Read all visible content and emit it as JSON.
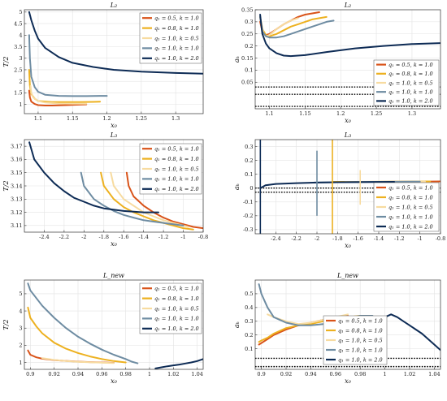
{
  "colors": {
    "s1": "#d95319",
    "s2": "#edb120",
    "s3": "#f7dba0",
    "s4": "#6e8ca2",
    "s5": "#0d2b55",
    "grid": "#e3e3e3",
    "axis": "#333333"
  },
  "legend_labels": [
    "q₁ = 0.5, k = 1.0",
    "q₁ = 0.8, k = 1.0",
    "q₁ = 1.0, k = 0.5",
    "q₁ = 1.0, k = 1.0",
    "q₁ = 1.0, k = 2.0"
  ],
  "chart_data": [
    {
      "type": "line",
      "title": "L₂",
      "xlabel": "x₀",
      "ylabel": "T/2",
      "xlim": [
        1.08,
        1.34
      ],
      "ylim": [
        0.6,
        5.1
      ],
      "xticks": [
        1.1,
        1.15,
        1.2,
        1.25,
        1.3
      ],
      "xtick_labels": [
        "1.1",
        "1.15",
        "1.2",
        "1.25",
        "1.3"
      ],
      "yticks": [
        1,
        1.5,
        2,
        2.5,
        3,
        3.5,
        4,
        4.5,
        5
      ],
      "ytick_labels": [
        "1",
        "1.5",
        "2",
        "2.5",
        "3",
        "3.5",
        "4",
        "4.5",
        "5"
      ],
      "grid": true,
      "legend_loc": "top-right",
      "series": [
        {
          "x": [
            1.087,
            1.088,
            1.09,
            1.095,
            1.1,
            1.11,
            1.12,
            1.14,
            1.16,
            1.17
          ],
          "y": [
            1.6,
            1.3,
            1.12,
            1.02,
            0.97,
            0.95,
            0.95,
            0.97,
            0.99,
            1.0
          ]
        },
        {
          "x": [
            1.087,
            1.088,
            1.09,
            1.095,
            1.1,
            1.12,
            1.14,
            1.16,
            1.18,
            1.19
          ],
          "y": [
            2.5,
            1.8,
            1.45,
            1.25,
            1.15,
            1.1,
            1.1,
            1.1,
            1.11,
            1.12
          ]
        },
        {
          "x": [
            1.089,
            1.09,
            1.093,
            1.1,
            1.11,
            1.13,
            1.15,
            1.17
          ],
          "y": [
            1.8,
            1.5,
            1.3,
            1.15,
            1.08,
            1.04,
            1.03,
            1.03
          ]
        },
        {
          "x": [
            1.087,
            1.088,
            1.09,
            1.095,
            1.1,
            1.11,
            1.13,
            1.15,
            1.17,
            1.19,
            1.2
          ],
          "y": [
            4.0,
            3.0,
            2.2,
            1.75,
            1.55,
            1.42,
            1.37,
            1.36,
            1.36,
            1.37,
            1.37
          ]
        },
        {
          "x": [
            1.087,
            1.09,
            1.095,
            1.1,
            1.11,
            1.13,
            1.15,
            1.18,
            1.21,
            1.25,
            1.3,
            1.34
          ],
          "y": [
            5.0,
            4.65,
            4.2,
            3.85,
            3.45,
            3.05,
            2.8,
            2.62,
            2.5,
            2.42,
            2.36,
            2.33
          ]
        }
      ]
    },
    {
      "type": "line",
      "title": "L₂",
      "xlabel": "x₀",
      "ylabel": "aₕ",
      "xlim": [
        1.08,
        1.34
      ],
      "ylim": [
        -0.06,
        0.35
      ],
      "xticks": [
        1.1,
        1.15,
        1.2,
        1.25,
        1.3
      ],
      "xtick_labels": [
        "1.1",
        "1.15",
        "1.2",
        "1.25",
        "1.3"
      ],
      "yticks": [
        0.05,
        0.1,
        0.15,
        0.2,
        0.25,
        0.3,
        0.35
      ],
      "ytick_labels": [
        "0.05",
        "0.1",
        "0.15",
        "0.2",
        "0.25",
        "0.3",
        "0.35"
      ],
      "hlines": [
        0.03,
        0.0,
        -0.05
      ],
      "grid": true,
      "legend_loc": "bottom-right",
      "series": [
        {
          "x": [
            1.087,
            1.09,
            1.095,
            1.1,
            1.11,
            1.12,
            1.13,
            1.14,
            1.15,
            1.16,
            1.17
          ],
          "y": [
            0.3,
            0.26,
            0.245,
            0.25,
            0.27,
            0.29,
            0.305,
            0.32,
            0.33,
            0.335,
            0.34
          ]
        },
        {
          "x": [
            1.087,
            1.09,
            1.095,
            1.1,
            1.11,
            1.12,
            1.13,
            1.14,
            1.15,
            1.16,
            1.17,
            1.18
          ],
          "y": [
            0.32,
            0.27,
            0.245,
            0.24,
            0.25,
            0.265,
            0.28,
            0.29,
            0.3,
            0.31,
            0.315,
            0.32
          ]
        },
        {
          "x": [
            1.089,
            1.092,
            1.095,
            1.1,
            1.11,
            1.12,
            1.13,
            1.14
          ],
          "y": [
            0.29,
            0.25,
            0.24,
            0.245,
            0.27,
            0.29,
            0.305,
            0.315
          ]
        },
        {
          "x": [
            1.087,
            1.09,
            1.095,
            1.1,
            1.11,
            1.12,
            1.13,
            1.14,
            1.15,
            1.16,
            1.17,
            1.18,
            1.19
          ],
          "y": [
            0.32,
            0.26,
            0.24,
            0.235,
            0.235,
            0.24,
            0.25,
            0.26,
            0.27,
            0.28,
            0.29,
            0.3,
            0.305
          ]
        },
        {
          "x": [
            1.087,
            1.088,
            1.09,
            1.095,
            1.1,
            1.11,
            1.12,
            1.13,
            1.15,
            1.18,
            1.22,
            1.26,
            1.3,
            1.34
          ],
          "y": [
            0.33,
            0.3,
            0.25,
            0.21,
            0.19,
            0.17,
            0.16,
            0.158,
            0.162,
            0.175,
            0.19,
            0.2,
            0.208,
            0.212
          ]
        }
      ]
    },
    {
      "type": "line",
      "title": "L₃",
      "xlabel": "x₀",
      "ylabel": "T/2",
      "xlim": [
        -2.6,
        -0.8
      ],
      "ylim": [
        3.105,
        3.175
      ],
      "xticks": [
        -2.4,
        -2.2,
        -2,
        -1.8,
        -1.6,
        -1.4,
        -1.2,
        -1,
        -0.8
      ],
      "xtick_labels": [
        "-2.4",
        "-2.2",
        "-2",
        "-1.8",
        "-1.6",
        "-1.4",
        "-1.2",
        "-1",
        "-0.8"
      ],
      "yticks": [
        3.11,
        3.12,
        3.13,
        3.14,
        3.15,
        3.16,
        3.17
      ],
      "ytick_labels": [
        "3.11",
        "3.12",
        "3.13",
        "3.14",
        "3.15",
        "3.16",
        "3.17"
      ],
      "grid": true,
      "legend_loc": "top-right",
      "series": [
        {
          "x": [
            -1.57,
            -1.55,
            -1.5,
            -1.4,
            -1.3,
            -1.2,
            -1.1,
            -1.0,
            -0.9,
            -0.8
          ],
          "y": [
            3.15,
            3.14,
            3.132,
            3.125,
            3.12,
            3.116,
            3.113,
            3.111,
            3.109,
            3.108
          ]
        },
        {
          "x": [
            -1.83,
            -1.8,
            -1.7,
            -1.6,
            -1.5,
            -1.4,
            -1.3,
            -1.2,
            -1.1,
            -1.0,
            -0.9
          ],
          "y": [
            3.15,
            3.14,
            3.13,
            3.124,
            3.12,
            3.117,
            3.114,
            3.112,
            3.11,
            3.108,
            3.107
          ]
        },
        {
          "x": [
            -1.73,
            -1.7,
            -1.6,
            -1.5,
            -1.4,
            -1.3,
            -1.2,
            -1.1,
            -1.0,
            -0.95
          ],
          "y": [
            3.15,
            3.14,
            3.13,
            3.125,
            3.12,
            3.117,
            3.114,
            3.112,
            3.11,
            3.109
          ]
        },
        {
          "x": [
            -2.03,
            -2.0,
            -1.9,
            -1.8,
            -1.7,
            -1.6,
            -1.5,
            -1.4,
            -1.3,
            -1.2,
            -1.1,
            -1.0
          ],
          "y": [
            3.15,
            3.14,
            3.13,
            3.125,
            3.121,
            3.118,
            3.116,
            3.114,
            3.113,
            3.112,
            3.111,
            3.11
          ]
        },
        {
          "x": [
            -2.55,
            -2.5,
            -2.4,
            -2.3,
            -2.2,
            -2.1,
            -2.0,
            -1.9,
            -1.8,
            -1.6,
            -1.4,
            -1.25
          ],
          "y": [
            3.173,
            3.16,
            3.15,
            3.142,
            3.136,
            3.131,
            3.128,
            3.125,
            3.123,
            3.121,
            3.12,
            3.12
          ]
        }
      ]
    },
    {
      "type": "line",
      "title": "L₃",
      "xlabel": "x₀",
      "ylabel": "aₕ",
      "xlim": [
        -2.6,
        -0.8
      ],
      "ylim": [
        -0.33,
        0.35
      ],
      "xticks": [
        -2.4,
        -2.2,
        -2,
        -1.8,
        -1.6,
        -1.4,
        -1.2,
        -1,
        -0.8
      ],
      "xtick_labels": [
        "-2.4",
        "-2.2",
        "-2",
        "-1.8",
        "-1.6",
        "-1.4",
        "-1.2",
        "-1",
        "-0.8"
      ],
      "yticks": [
        -0.3,
        -0.2,
        -0.1,
        0,
        0.1,
        0.2,
        0.3
      ],
      "ytick_labels": [
        "-0.3",
        "-0.2",
        "-0.1",
        "0",
        "0.1",
        "0.2",
        "0.3"
      ],
      "hlines": [
        0.0,
        -0.03
      ],
      "grid": true,
      "legend_loc": "bottom-right",
      "spikes": [
        {
          "series": 0,
          "x": -1.57,
          "y": [
            0.05,
            0.05
          ]
        },
        {
          "series": 1,
          "x": -1.85,
          "y": [
            -0.33,
            0.35
          ]
        },
        {
          "series": 2,
          "x": -1.58,
          "y": [
            -0.12,
            0.13
          ]
        },
        {
          "series": 3,
          "x": -2.0,
          "y": [
            -0.2,
            0.27
          ]
        },
        {
          "series": 4,
          "x": -2.55,
          "y": [
            -0.33,
            0.35
          ]
        }
      ],
      "series": [
        {
          "x": [
            -1.57,
            -1.4,
            -1.2,
            -1.0,
            -0.8
          ],
          "y": [
            0.045,
            0.045,
            0.046,
            0.047,
            0.048
          ]
        },
        {
          "x": [
            -1.85,
            -1.6,
            -1.4,
            -1.2,
            -1.0,
            -0.9
          ],
          "y": [
            0.045,
            0.045,
            0.046,
            0.047,
            0.048,
            0.048
          ]
        },
        {
          "x": [
            -1.73,
            -1.5,
            -1.3,
            -1.1,
            -0.95
          ],
          "y": [
            0.044,
            0.045,
            0.046,
            0.047,
            0.047
          ]
        },
        {
          "x": [
            -2.03,
            -1.8,
            -1.6,
            -1.4,
            -1.2,
            -1.0
          ],
          "y": [
            0.04,
            0.042,
            0.044,
            0.045,
            0.046,
            0.047
          ]
        },
        {
          "x": [
            -2.55,
            -2.5,
            -2.4,
            -2.2,
            -2.0,
            -1.8,
            -1.5,
            -1.25
          ],
          "y": [
            0.0,
            0.02,
            0.03,
            0.036,
            0.04,
            0.042,
            0.044,
            0.045
          ]
        }
      ]
    },
    {
      "type": "line",
      "title": "L_new",
      "xlabel": "x₀",
      "ylabel": "T/2",
      "xlim": [
        0.895,
        1.045
      ],
      "ylim": [
        0.6,
        5.8
      ],
      "xticks": [
        0.9,
        0.92,
        0.94,
        0.96,
        0.98,
        1,
        1.02,
        1.04
      ],
      "xtick_labels": [
        "0.9",
        "0.92",
        "0.94",
        "0.96",
        "0.98",
        "1",
        "1.02",
        "1.04"
      ],
      "yticks": [
        1,
        2,
        3,
        4,
        5
      ],
      "ytick_labels": [
        "1",
        "2",
        "3",
        "4",
        "5"
      ],
      "grid": true,
      "legend_loc": "top-right",
      "series": [
        {
          "x": [
            0.898,
            0.9,
            0.905,
            0.91,
            0.92,
            0.93,
            0.94,
            0.95,
            0.96,
            0.97
          ],
          "y": [
            1.7,
            1.45,
            1.3,
            1.22,
            1.14,
            1.09,
            1.05,
            1.02,
            1.0,
            0.98
          ]
        },
        {
          "x": [
            0.898,
            0.9,
            0.905,
            0.91,
            0.92,
            0.93,
            0.94,
            0.95,
            0.96,
            0.97,
            0.98
          ],
          "y": [
            4.2,
            3.6,
            3.1,
            2.7,
            2.15,
            1.8,
            1.55,
            1.35,
            1.2,
            1.08,
            1.0
          ]
        },
        {
          "x": [
            0.91,
            0.92,
            0.93,
            0.94,
            0.95,
            0.96,
            0.97
          ],
          "y": [
            1.25,
            1.15,
            1.08,
            1.04,
            1.01,
            0.99,
            0.97
          ]
        },
        {
          "x": [
            0.898,
            0.9,
            0.91,
            0.92,
            0.93,
            0.94,
            0.95,
            0.96,
            0.97,
            0.98,
            0.985,
            0.99
          ],
          "y": [
            5.6,
            5.2,
            4.3,
            3.6,
            3.0,
            2.5,
            2.1,
            1.75,
            1.45,
            1.2,
            1.05,
            0.95
          ]
        },
        {
          "x": [
            1.005,
            1.01,
            1.015,
            1.02,
            1.025,
            1.03,
            1.035,
            1.04,
            1.045
          ],
          "y": [
            0.65,
            0.72,
            0.78,
            0.83,
            0.88,
            0.94,
            1.0,
            1.08,
            1.2
          ]
        }
      ]
    },
    {
      "type": "line",
      "title": "L_new",
      "xlabel": "x₀",
      "ylabel": "aₕ",
      "xlim": [
        0.895,
        1.045
      ],
      "ylim": [
        -0.05,
        0.6
      ],
      "xticks": [
        0.9,
        0.92,
        0.94,
        0.96,
        0.98,
        1,
        1.02,
        1.04
      ],
      "xtick_labels": [
        "0.9",
        "0.92",
        "0.94",
        "0.96",
        "0.98",
        "1",
        "1.02",
        "1.04"
      ],
      "yticks": [
        0.1,
        0.2,
        0.3,
        0.4,
        0.5
      ],
      "ytick_labels": [
        "0.1",
        "0.2",
        "0.3",
        "0.4",
        "0.5"
      ],
      "hlines": [
        0.03,
        -0.03
      ],
      "grid": true,
      "legend_loc": "bottom-center",
      "series": [
        {
          "x": [
            0.898,
            0.905,
            0.91,
            0.92,
            0.93,
            0.94,
            0.95,
            0.96,
            0.97
          ],
          "y": [
            0.13,
            0.17,
            0.2,
            0.24,
            0.27,
            0.29,
            0.31,
            0.33,
            0.34
          ]
        },
        {
          "x": [
            0.898,
            0.9,
            0.905,
            0.91,
            0.92,
            0.93,
            0.94,
            0.95,
            0.96,
            0.97,
            0.98
          ],
          "y": [
            0.15,
            0.16,
            0.18,
            0.21,
            0.25,
            0.27,
            0.28,
            0.3,
            0.32,
            0.33,
            0.34
          ]
        },
        {
          "x": [
            0.905,
            0.91,
            0.92,
            0.93,
            0.94,
            0.95,
            0.96,
            0.97
          ],
          "y": [
            0.35,
            0.33,
            0.3,
            0.28,
            0.29,
            0.31,
            0.33,
            0.35
          ]
        },
        {
          "x": [
            0.898,
            0.9,
            0.905,
            0.91,
            0.92,
            0.93,
            0.94,
            0.95,
            0.96,
            0.97,
            0.98,
            0.99
          ],
          "y": [
            0.57,
            0.5,
            0.4,
            0.33,
            0.29,
            0.27,
            0.27,
            0.28,
            0.3,
            0.32,
            0.34,
            0.34
          ]
        },
        {
          "x": [
            1.0,
            1.005,
            1.01,
            1.015,
            1.02,
            1.03,
            1.04,
            1.045
          ],
          "y": [
            0.33,
            0.35,
            0.33,
            0.3,
            0.27,
            0.21,
            0.13,
            0.09
          ]
        }
      ]
    }
  ]
}
